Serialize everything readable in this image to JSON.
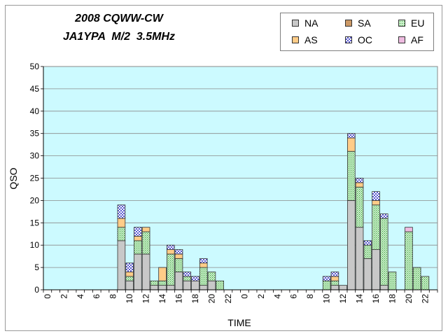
{
  "chart_data": {
    "type": "bar",
    "stacked": true,
    "title_lines": [
      "2008 CQWW-CW",
      "JA1YPA  M/2  3.5MHz"
    ],
    "xlabel": "TIME",
    "ylabel": "QSO",
    "ylim": [
      0,
      50
    ],
    "yticks": [
      0,
      5,
      10,
      15,
      20,
      25,
      30,
      35,
      40,
      45,
      50
    ],
    "grid": true,
    "legend_position": "top-right",
    "categories": [
      "0",
      "1",
      "2",
      "3",
      "4",
      "5",
      "6",
      "7",
      "8",
      "9",
      "10",
      "11",
      "12",
      "13",
      "14",
      "15",
      "16",
      "17",
      "18",
      "19",
      "20",
      "21",
      "22",
      "23",
      "0",
      "1",
      "2",
      "3",
      "4",
      "5",
      "6",
      "7",
      "8",
      "9",
      "10",
      "11",
      "12",
      "13",
      "14",
      "15",
      "16",
      "17",
      "18",
      "19",
      "20",
      "21",
      "22",
      "23"
    ],
    "tick_labels": [
      "0",
      "",
      "2",
      "",
      "4",
      "",
      "6",
      "",
      "8",
      "",
      "10",
      "",
      "12",
      "",
      "14",
      "",
      "16",
      "",
      "18",
      "",
      "20",
      "",
      "22",
      "",
      "0",
      "",
      "2",
      "",
      "4",
      "",
      "6",
      "",
      "8",
      "",
      "10",
      "",
      "12",
      "",
      "14",
      "",
      "16",
      "",
      "18",
      "",
      "20",
      "",
      "22",
      ""
    ],
    "series": [
      {
        "name": "NA",
        "color": "#c8c8c8",
        "pattern": "solid",
        "values": [
          0,
          0,
          0,
          0,
          0,
          0,
          0,
          0,
          0,
          11,
          2,
          8,
          8,
          1,
          1,
          1,
          4,
          2,
          2,
          1,
          2,
          0,
          0,
          0,
          0,
          0,
          0,
          0,
          0,
          0,
          0,
          0,
          0,
          0,
          0,
          1,
          1,
          20,
          14,
          7,
          9,
          1,
          0,
          0,
          0,
          0,
          0,
          0
        ]
      },
      {
        "name": "SA",
        "color": "#cc9966",
        "pattern": "solid",
        "values": [
          0,
          0,
          0,
          0,
          0,
          0,
          0,
          0,
          0,
          0,
          0,
          0,
          0,
          0,
          0,
          0,
          0,
          0,
          0,
          0,
          0,
          0,
          0,
          0,
          0,
          0,
          0,
          0,
          0,
          0,
          0,
          0,
          0,
          0,
          0,
          0,
          0,
          0,
          0,
          0,
          0,
          0,
          0,
          0,
          0,
          0,
          0,
          0
        ]
      },
      {
        "name": "EU",
        "color": "#8fd98f",
        "pattern": "dots",
        "values": [
          0,
          0,
          0,
          0,
          0,
          0,
          0,
          0,
          0,
          3,
          1,
          3,
          5,
          1,
          1,
          7,
          3,
          1,
          0,
          4,
          2,
          2,
          0,
          0,
          0,
          0,
          0,
          0,
          0,
          0,
          0,
          0,
          0,
          0,
          2,
          1,
          0,
          11,
          9,
          3,
          10,
          15,
          4,
          0,
          13,
          5,
          3,
          0
        ]
      },
      {
        "name": "AS",
        "color": "#ffcc88",
        "pattern": "solid",
        "values": [
          0,
          0,
          0,
          0,
          0,
          0,
          0,
          0,
          0,
          2,
          1,
          1,
          1,
          0,
          3,
          1,
          1,
          0,
          0,
          1,
          0,
          0,
          0,
          0,
          0,
          0,
          0,
          0,
          0,
          0,
          0,
          0,
          0,
          0,
          0,
          1,
          0,
          3,
          1,
          0,
          1,
          0,
          0,
          0,
          0,
          0,
          0,
          0
        ]
      },
      {
        "name": "OC",
        "color": "#9999ee",
        "pattern": "checker",
        "values": [
          0,
          0,
          0,
          0,
          0,
          0,
          0,
          0,
          0,
          3,
          2,
          2,
          0,
          0,
          0,
          1,
          1,
          1,
          1,
          1,
          0,
          0,
          0,
          0,
          0,
          0,
          0,
          0,
          0,
          0,
          0,
          0,
          0,
          0,
          1,
          1,
          0,
          1,
          1,
          1,
          2,
          1,
          0,
          0,
          0,
          0,
          0,
          0
        ]
      },
      {
        "name": "AF",
        "color": "#eebbe0",
        "pattern": "solid",
        "values": [
          0,
          0,
          0,
          0,
          0,
          0,
          0,
          0,
          0,
          0,
          0,
          0,
          0,
          0,
          0,
          0,
          0,
          0,
          0,
          0,
          0,
          0,
          0,
          0,
          0,
          0,
          0,
          0,
          0,
          0,
          0,
          0,
          0,
          0,
          0,
          0,
          0,
          0,
          0,
          0,
          0,
          0,
          0,
          0,
          1,
          0,
          0,
          0
        ]
      }
    ]
  }
}
